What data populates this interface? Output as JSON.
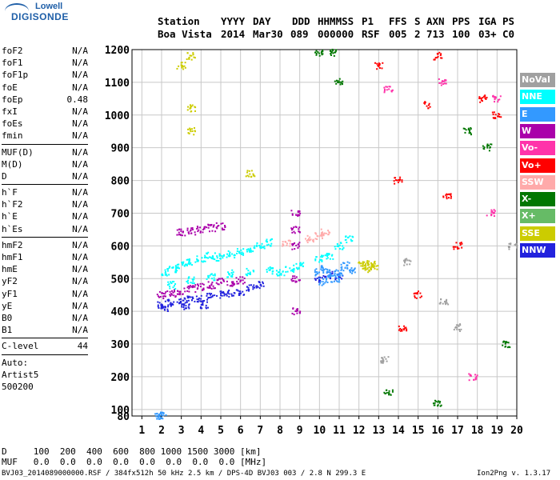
{
  "logo": {
    "line1": "Lowell",
    "line2": "DIGISONDE"
  },
  "header": {
    "labels": [
      "Station",
      "YYYY",
      "DAY",
      "DDD",
      "HHMMSS",
      "P1",
      "FFS",
      "S",
      "AXN",
      "PPS",
      "IGA",
      "PS"
    ],
    "values": [
      "Boa Vista",
      "2014",
      "Mar30",
      "089",
      "000000",
      "RSF",
      "005",
      "2",
      "713",
      "100",
      "03+",
      "C0"
    ]
  },
  "params": [
    {
      "name": "foF2",
      "value": "N/A"
    },
    {
      "name": "foF1",
      "value": "N/A"
    },
    {
      "name": "foF1p",
      "value": "N/A"
    },
    {
      "name": "foE",
      "value": "N/A"
    },
    {
      "name": "foEp",
      "value": "0.48"
    },
    {
      "name": "fxI",
      "value": "N/A"
    },
    {
      "name": "foEs",
      "value": "N/A"
    },
    {
      "name": "fmin",
      "value": "N/A"
    },
    {
      "sep": true
    },
    {
      "name": "MUF(D)",
      "value": "N/A"
    },
    {
      "name": "M(D)",
      "value": "N/A"
    },
    {
      "name": "D",
      "value": "N/A"
    },
    {
      "sep": true
    },
    {
      "name": "h`F",
      "value": "N/A"
    },
    {
      "name": "h`F2",
      "value": "N/A"
    },
    {
      "name": "h`E",
      "value": "N/A"
    },
    {
      "name": "h`Es",
      "value": "N/A"
    },
    {
      "sep": true
    },
    {
      "name": "hmF2",
      "value": "N/A"
    },
    {
      "name": "hmF1",
      "value": "N/A"
    },
    {
      "name": "hmE",
      "value": "N/A"
    },
    {
      "name": "yF2",
      "value": "N/A"
    },
    {
      "name": "yF1",
      "value": "N/A"
    },
    {
      "name": "yE",
      "value": "N/A"
    },
    {
      "name": "B0",
      "value": "N/A"
    },
    {
      "name": "B1",
      "value": "N/A"
    },
    {
      "sep": true
    },
    {
      "name": "C-level",
      "value": "44"
    },
    {
      "sep": true
    },
    {
      "name": "Auto:",
      "value": ""
    },
    {
      "name": "Artist5",
      "value": ""
    },
    {
      "name": "500200",
      "value": ""
    }
  ],
  "legend": [
    {
      "label": "NoVal",
      "color": "#a0a0a0"
    },
    {
      "label": "NNE",
      "color": "#00ffff"
    },
    {
      "label": "E",
      "color": "#3399ff"
    },
    {
      "label": "W",
      "color": "#aa00aa"
    },
    {
      "label": "Vo-",
      "color": "#ff33aa"
    },
    {
      "label": "Vo+",
      "color": "#ff0000"
    },
    {
      "label": "SSW",
      "color": "#ffaaaa"
    },
    {
      "label": "X-",
      "color": "#007700"
    },
    {
      "label": "X+",
      "color": "#66bb66"
    },
    {
      "label": "SSE",
      "color": "#cccc00"
    },
    {
      "label": "NNW",
      "color": "#2222dd"
    }
  ],
  "bottom": {
    "d_row": "D     100  200  400  600  800 1000 1500 3000 [km]",
    "muf_row": "MUF   0.0  0.0  0.0  0.0  0.0  0.0  0.0  0.0 [MHz]",
    "footer_left": "BVJ03_2014089000000.RSF / 384fx512h 50 kHz 2.5 km / DPS-4D BVJ03 003 / 2.8 N 299.3 E",
    "footer_right": "Ion2Png v. 1.3.17"
  },
  "chart_data": {
    "type": "scatter",
    "x_ticks": [
      1,
      2,
      3,
      4,
      5,
      6,
      7,
      8,
      9,
      10,
      11,
      12,
      13,
      14,
      15,
      16,
      17,
      18,
      19,
      20
    ],
    "y_ticks": [
      80,
      100,
      200,
      300,
      400,
      500,
      600,
      700,
      800,
      900,
      1000,
      1100,
      1200
    ],
    "xlim": [
      0.5,
      20
    ],
    "ylim": [
      80,
      1200
    ],
    "grid": true,
    "series": [
      {
        "name": "NNW",
        "color": "#2222dd",
        "points": [
          [
            2.0,
            420
          ],
          [
            2.5,
            425
          ],
          [
            3.0,
            430
          ],
          [
            3.5,
            435
          ],
          [
            4.0,
            440
          ],
          [
            4.5,
            445
          ],
          [
            5.0,
            450
          ],
          [
            5.5,
            455
          ],
          [
            6.0,
            460
          ],
          [
            6.5,
            470
          ],
          [
            7.0,
            480
          ],
          [
            10.0,
            500
          ],
          [
            10.5,
            510
          ],
          [
            11.0,
            505
          ],
          [
            2.2,
            410
          ],
          [
            3.2,
            415
          ],
          [
            4.2,
            420
          ]
        ]
      },
      {
        "name": "W",
        "color": "#aa00aa",
        "points": [
          [
            2.0,
            450
          ],
          [
            2.5,
            455
          ],
          [
            3.0,
            460
          ],
          [
            3.5,
            470
          ],
          [
            4.0,
            475
          ],
          [
            4.5,
            480
          ],
          [
            5.0,
            490
          ],
          [
            5.5,
            485
          ],
          [
            6.0,
            495
          ],
          [
            3.0,
            640
          ],
          [
            3.5,
            645
          ],
          [
            4.0,
            650
          ],
          [
            4.5,
            655
          ],
          [
            5.0,
            660
          ],
          [
            8.8,
            600
          ],
          [
            8.8,
            650
          ],
          [
            8.8,
            700
          ],
          [
            8.8,
            500
          ],
          [
            8.8,
            400
          ]
        ]
      },
      {
        "name": "NNE",
        "color": "#00ffff",
        "points": [
          [
            2.2,
            520
          ],
          [
            2.6,
            530
          ],
          [
            3.0,
            540
          ],
          [
            3.5,
            550
          ],
          [
            4.0,
            560
          ],
          [
            4.5,
            570
          ],
          [
            5.0,
            565
          ],
          [
            5.5,
            575
          ],
          [
            6.0,
            580
          ],
          [
            6.5,
            590
          ],
          [
            7.0,
            600
          ],
          [
            7.5,
            610
          ],
          [
            8.0,
            520
          ],
          [
            8.5,
            530
          ],
          [
            9.0,
            540
          ],
          [
            10.0,
            560
          ],
          [
            10.5,
            570
          ],
          [
            11.0,
            600
          ],
          [
            11.5,
            620
          ],
          [
            2.5,
            480
          ],
          [
            3.5,
            495
          ],
          [
            4.5,
            505
          ],
          [
            5.5,
            515
          ],
          [
            6.5,
            520
          ],
          [
            7.5,
            525
          ]
        ]
      },
      {
        "name": "E",
        "color": "#3399ff",
        "points": [
          [
            10.0,
            520
          ],
          [
            10.3,
            530
          ],
          [
            10.6,
            515
          ],
          [
            11.0,
            520
          ],
          [
            11.3,
            540
          ],
          [
            11.6,
            525
          ],
          [
            10.2,
            490
          ],
          [
            10.8,
            500
          ],
          [
            1.9,
            80
          ],
          [
            2.0,
            82
          ]
        ]
      },
      {
        "name": "SSE",
        "color": "#cccc00",
        "points": [
          [
            12.2,
            540
          ],
          [
            12.4,
            530
          ],
          [
            12.6,
            545
          ],
          [
            12.8,
            535
          ],
          [
            3.0,
            1150
          ],
          [
            3.5,
            1180
          ],
          [
            3.5,
            1020
          ],
          [
            3.5,
            950
          ],
          [
            6.5,
            820
          ]
        ]
      },
      {
        "name": "Vo+",
        "color": "#ff0000",
        "points": [
          [
            13.0,
            1150
          ],
          [
            14.0,
            800
          ],
          [
            15.5,
            1030
          ],
          [
            16.0,
            1180
          ],
          [
            17.0,
            600
          ],
          [
            18.3,
            1050
          ],
          [
            19.0,
            1000
          ],
          [
            16.5,
            750
          ],
          [
            15.0,
            450
          ],
          [
            14.2,
            350
          ]
        ]
      },
      {
        "name": "X-",
        "color": "#007700",
        "points": [
          [
            10.0,
            1190
          ],
          [
            10.7,
            1190
          ],
          [
            11.0,
            1100
          ],
          [
            17.5,
            950
          ],
          [
            18.5,
            900
          ],
          [
            19.5,
            300
          ],
          [
            13.5,
            150
          ],
          [
            16.0,
            120
          ]
        ]
      },
      {
        "name": "SSW",
        "color": "#ffaaaa",
        "points": [
          [
            9.5,
            620
          ],
          [
            10.0,
            630
          ],
          [
            10.3,
            640
          ],
          [
            8.3,
            610
          ]
        ]
      },
      {
        "name": "Vo-",
        "color": "#ff33aa",
        "points": [
          [
            13.5,
            1080
          ],
          [
            16.2,
            1100
          ],
          [
            19.0,
            1050
          ],
          [
            17.8,
            200
          ],
          [
            18.7,
            700
          ]
        ]
      },
      {
        "name": "NoVal",
        "color": "#a0a0a0",
        "points": [
          [
            16.3,
            430
          ],
          [
            13.3,
            250
          ],
          [
            14.5,
            550
          ],
          [
            19.8,
            600
          ],
          [
            17.0,
            350
          ]
        ]
      }
    ]
  }
}
